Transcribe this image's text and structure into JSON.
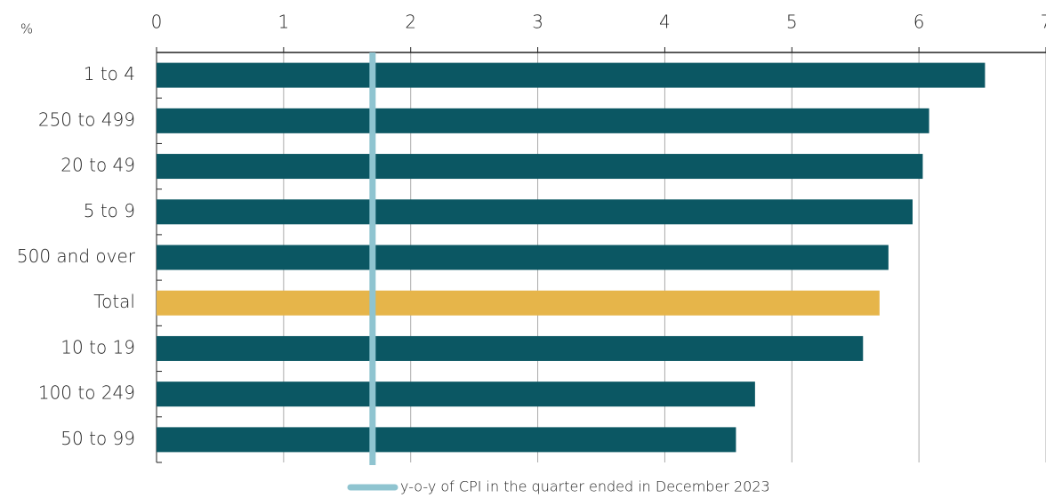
{
  "chart_data": {
    "type": "barh",
    "axis_unit": "%",
    "categories": [
      "1 to 4",
      "250 to 499",
      "20 to 49",
      "5 to 9",
      "500 and over",
      "Total",
      "10 to 19",
      "100 to 249",
      "50 to 99"
    ],
    "values": [
      6.52,
      6.08,
      6.03,
      5.95,
      5.76,
      5.69,
      5.56,
      4.71,
      4.56
    ],
    "colors": [
      "#0b5763",
      "#0b5763",
      "#0b5763",
      "#0b5763",
      "#0b5763",
      "#e6b54a",
      "#0b5763",
      "#0b5763",
      "#0b5763"
    ],
    "xlim": [
      0,
      7
    ],
    "xticks": [
      0,
      1,
      2,
      3,
      4,
      5,
      6,
      7
    ],
    "grid": true,
    "reference_lines": [
      {
        "value": 1.7,
        "label": "y-o-y of CPI in the quarter ended in December 2023",
        "color": "#8fc4d0"
      }
    ],
    "legend": "bottom"
  }
}
